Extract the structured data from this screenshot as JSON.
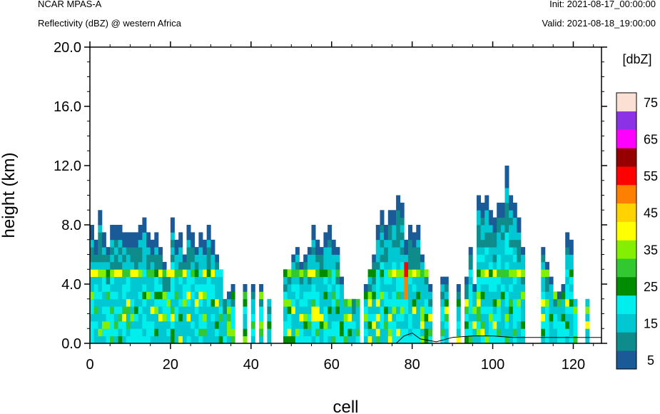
{
  "header": {
    "model": "NCAR MPAS-A",
    "field": "Reflectivity (dBZ) @ western Africa",
    "init": "Init: 2021-08-17_00:00:00",
    "valid": "Valid: 2021-08-18_19:00:00"
  },
  "chart_data": {
    "type": "heatmap",
    "title": "Reflectivity (dBZ) @ western Africa",
    "xlabel": "cell",
    "ylabel": "height (km)",
    "xlim": [
      0,
      127
    ],
    "ylim": [
      0,
      20
    ],
    "x_ticks": [
      "0",
      "20",
      "40",
      "60",
      "80",
      "100",
      "120"
    ],
    "y_ticks": [
      "0.0",
      "4.0",
      "8.0",
      "12.0",
      "16.0",
      "20.0"
    ],
    "colorbar": {
      "unit": "[dbZ]",
      "levels": [
        5,
        10,
        15,
        20,
        25,
        30,
        35,
        40,
        45,
        50,
        55,
        60,
        65,
        70,
        75
      ],
      "labels": [
        "5",
        "15",
        "25",
        "35",
        "45",
        "55",
        "65",
        "75"
      ],
      "colors": [
        "#1a5a96",
        "#0e8c8c",
        "#00c8d2",
        "#00eeee",
        "#008c00",
        "#32c832",
        "#82f000",
        "#ffff00",
        "#ffd200",
        "#ff8000",
        "#ff0000",
        "#960000",
        "#ff00ff",
        "#8c32e6",
        "#fde0d4"
      ]
    },
    "columns": [
      {
        "x": 0,
        "top": 8.0
      },
      {
        "x": 1,
        "top": 7.0
      },
      {
        "x": 2,
        "top": 9.0
      },
      {
        "x": 3,
        "top": 7.5
      },
      {
        "x": 4,
        "top": 6.5
      },
      {
        "x": 5,
        "top": 8.0
      },
      {
        "x": 6,
        "top": 8.0
      },
      {
        "x": 7,
        "top": 8.0
      },
      {
        "x": 8,
        "top": 7.5
      },
      {
        "x": 9,
        "top": 7.5
      },
      {
        "x": 10,
        "top": 7.5
      },
      {
        "x": 11,
        "top": 7.5
      },
      {
        "x": 12,
        "top": 8.0
      },
      {
        "x": 13,
        "top": 8.5
      },
      {
        "x": 14,
        "top": 7.5
      },
      {
        "x": 15,
        "top": 7.0
      },
      {
        "x": 16,
        "top": 7.5
      },
      {
        "x": 17,
        "top": 6.5
      },
      {
        "x": 18,
        "top": 5.5
      },
      {
        "x": 19,
        "top": 5.0
      },
      {
        "x": 20,
        "top": 8.5
      },
      {
        "x": 21,
        "top": 7.0
      },
      {
        "x": 22,
        "top": 7.5
      },
      {
        "x": 23,
        "top": 6.0
      },
      {
        "x": 24,
        "top": 8.0
      },
      {
        "x": 25,
        "top": 7.5
      },
      {
        "x": 26,
        "top": 6.5
      },
      {
        "x": 27,
        "top": 7.5
      },
      {
        "x": 28,
        "top": 7.0
      },
      {
        "x": 29,
        "top": 8.0
      },
      {
        "x": 30,
        "top": 7.0
      },
      {
        "x": 31,
        "top": 6.0
      },
      {
        "x": 32,
        "top": 5.0
      },
      {
        "x": 33,
        "top": 3.0
      },
      {
        "x": 34,
        "top": 3.5
      },
      {
        "x": 35,
        "top": 4.0
      },
      {
        "x": 38,
        "top": 4.0
      },
      {
        "x": 40,
        "top": 4.0
      },
      {
        "x": 42,
        "top": 4.0
      },
      {
        "x": 44,
        "top": 3.0
      },
      {
        "x": 48,
        "top": 5.0
      },
      {
        "x": 49,
        "top": 5.0
      },
      {
        "x": 50,
        "top": 6.0
      },
      {
        "x": 51,
        "top": 6.5
      },
      {
        "x": 52,
        "top": 5.5
      },
      {
        "x": 53,
        "top": 6.0
      },
      {
        "x": 54,
        "top": 6.5
      },
      {
        "x": 55,
        "top": 8.0
      },
      {
        "x": 56,
        "top": 7.0
      },
      {
        "x": 57,
        "top": 6.5
      },
      {
        "x": 58,
        "top": 7.5
      },
      {
        "x": 59,
        "top": 8.0
      },
      {
        "x": 60,
        "top": 7.0
      },
      {
        "x": 61,
        "top": 6.5
      },
      {
        "x": 62,
        "top": 4.5
      },
      {
        "x": 63,
        "top": 3.0
      },
      {
        "x": 64,
        "top": 3.0
      },
      {
        "x": 65,
        "top": 3.0
      },
      {
        "x": 66,
        "top": 3.0
      },
      {
        "x": 68,
        "top": 4.0
      },
      {
        "x": 69,
        "top": 5.0
      },
      {
        "x": 70,
        "top": 6.0
      },
      {
        "x": 71,
        "top": 8.0
      },
      {
        "x": 72,
        "top": 9.0
      },
      {
        "x": 73,
        "top": 8.0
      },
      {
        "x": 74,
        "top": 9.0
      },
      {
        "x": 75,
        "top": 9.0
      },
      {
        "x": 76,
        "top": 10.0
      },
      {
        "x": 77,
        "top": 9.5
      },
      {
        "x": 78,
        "top": 7.0
      },
      {
        "x": 79,
        "top": 8.0
      },
      {
        "x": 80,
        "top": 7.5
      },
      {
        "x": 81,
        "top": 8.0
      },
      {
        "x": 82,
        "top": 6.0
      },
      {
        "x": 83,
        "top": 5.0
      },
      {
        "x": 84,
        "top": 4.0
      },
      {
        "x": 87,
        "top": 4.5
      },
      {
        "x": 88,
        "top": 4.5
      },
      {
        "x": 91,
        "top": 4.0
      },
      {
        "x": 93,
        "top": 4.5
      },
      {
        "x": 94,
        "top": 6.5
      },
      {
        "x": 95,
        "top": 4.0
      },
      {
        "x": 96,
        "top": 10.0
      },
      {
        "x": 97,
        "top": 9.5
      },
      {
        "x": 98,
        "top": 10.0
      },
      {
        "x": 99,
        "top": 9.0
      },
      {
        "x": 100,
        "top": 8.5
      },
      {
        "x": 101,
        "top": 9.5
      },
      {
        "x": 102,
        "top": 9.5
      },
      {
        "x": 103,
        "top": 12.0
      },
      {
        "x": 104,
        "top": 10.0
      },
      {
        "x": 105,
        "top": 9.5
      },
      {
        "x": 106,
        "top": 8.5
      },
      {
        "x": 107,
        "top": 6.5
      },
      {
        "x": 112,
        "top": 6.5
      },
      {
        "x": 113,
        "top": 5.5
      },
      {
        "x": 114,
        "top": 4.5
      },
      {
        "x": 115,
        "top": 3.5
      },
      {
        "x": 116,
        "top": 3.5
      },
      {
        "x": 117,
        "top": 4.0
      },
      {
        "x": 118,
        "top": 7.5
      },
      {
        "x": 119,
        "top": 7.0
      },
      {
        "x": 120,
        "top": 3.0
      },
      {
        "x": 123,
        "top": 3.0
      }
    ],
    "terrain": [
      [
        0,
        0
      ],
      [
        76,
        0
      ],
      [
        78,
        0.5
      ],
      [
        80,
        0.7
      ],
      [
        82,
        0.3
      ],
      [
        86,
        0.1
      ],
      [
        90,
        0.4
      ],
      [
        95,
        0.5
      ],
      [
        100,
        0.5
      ],
      [
        105,
        0.4
      ],
      [
        110,
        0.4
      ],
      [
        115,
        0.4
      ],
      [
        120,
        0.4
      ],
      [
        127,
        0.4
      ]
    ]
  }
}
